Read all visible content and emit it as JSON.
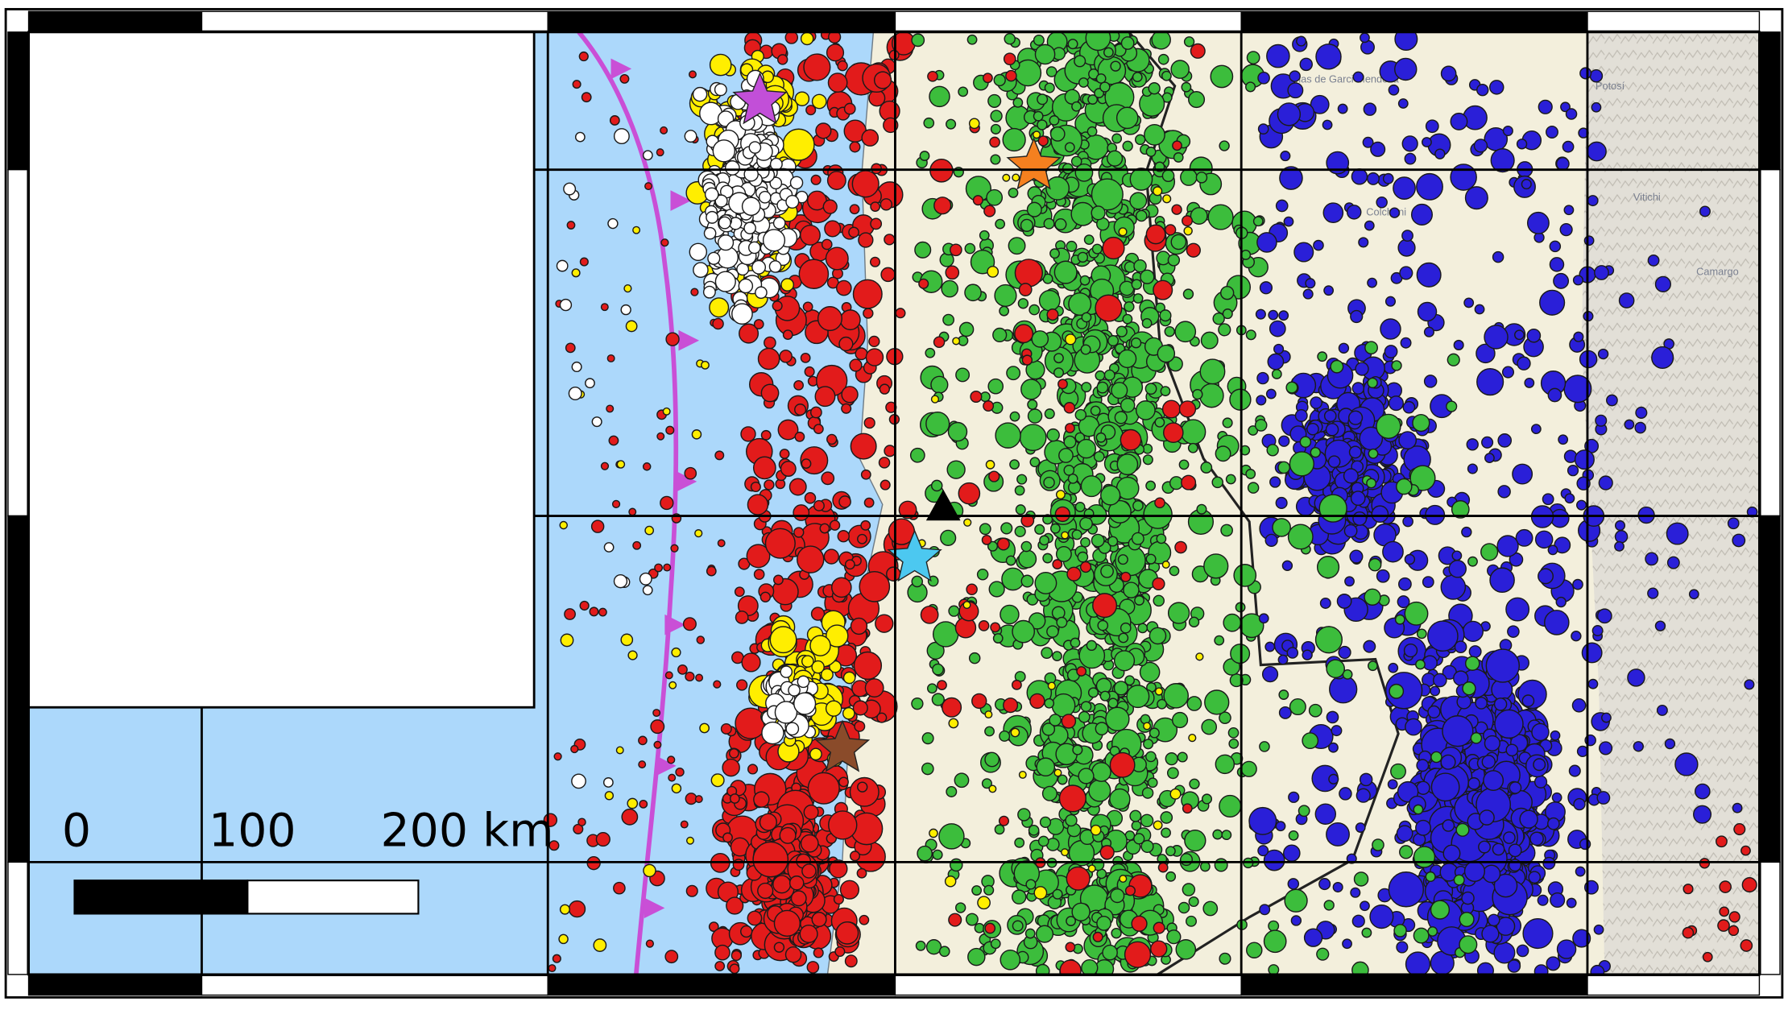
{
  "map": {
    "scale_bar": {
      "labels": [
        "0",
        "100",
        "200 km"
      ],
      "max_km": 200
    },
    "place_labels": [
      "Potosí",
      "Colchani",
      "Vitichi",
      "Camargo",
      "Salinas de Garci Mendoza"
    ],
    "colors": {
      "ocean": "#acd8fb",
      "land": "#f3efdc",
      "highland": "#dedbd3",
      "trench": "#c94fd6",
      "events_white": "#ffffff",
      "events_yellow": "#ffee00",
      "events_red": "#e21b1b",
      "events_green": "#3cbd3c",
      "events_blue": "#2a1fd8"
    },
    "markers": [
      {
        "name": "magenta-star",
        "color": "#c24fd8",
        "shape": "star"
      },
      {
        "name": "orange-star",
        "color": "#f5801f",
        "shape": "star"
      },
      {
        "name": "cyan-star",
        "color": "#4cc8f0",
        "shape": "star"
      },
      {
        "name": "brown-star",
        "color": "#8a4b2a",
        "shape": "star"
      },
      {
        "name": "black-triangle",
        "color": "#000000",
        "shape": "triangle"
      }
    ]
  }
}
